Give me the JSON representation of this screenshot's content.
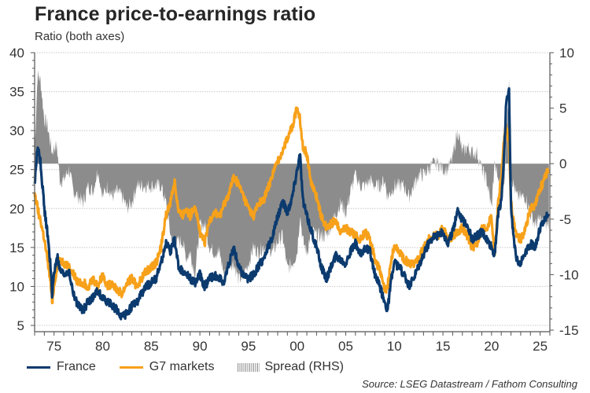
{
  "title": "France price-to-earnings ratio",
  "subtitle": "Ratio (both axes)",
  "source": "Source: LSEG Datastream / Fathom Consulting",
  "colors": {
    "france": "#0b3a6e",
    "g7": "#f7a11a",
    "spread": "#8c8c8c",
    "grid": "#c8c8c8",
    "axis": "#555555"
  },
  "legend": [
    {
      "label": "France",
      "key": "france"
    },
    {
      "label": "G7 markets",
      "key": "g7"
    },
    {
      "label": "Spread (RHS)",
      "key": "spread"
    }
  ],
  "chart_data": {
    "type": "line",
    "title": "France price-to-earnings ratio",
    "subtitle": "Ratio (both axes)",
    "xlabel": "",
    "ylabel": "Ratio",
    "y2label": "Spread (RHS)",
    "xlim": [
      1973,
      2026
    ],
    "ylim": [
      5,
      40
    ],
    "y2lim": [
      -15,
      10
    ],
    "grid": true,
    "legend_position": "bottom",
    "x_ticks": [
      1975,
      1980,
      1985,
      1990,
      1995,
      2000,
      2005,
      2010,
      2015,
      2020,
      2025
    ],
    "x_tick_labels": [
      "75",
      "80",
      "85",
      "90",
      "95",
      "00",
      "05",
      "10",
      "15",
      "20",
      "25"
    ],
    "y_ticks": [
      5,
      10,
      15,
      20,
      25,
      30,
      35,
      40
    ],
    "y2_ticks": [
      -15,
      -10,
      -5,
      0,
      5,
      10
    ],
    "x": [
      1973.0,
      1973.3,
      1973.6,
      1974.0,
      1974.3,
      1974.6,
      1974.8,
      1975.0,
      1975.3,
      1975.6,
      1976.0,
      1976.5,
      1977.0,
      1977.5,
      1978.0,
      1978.5,
      1979.0,
      1979.5,
      1980.0,
      1980.5,
      1981.0,
      1981.5,
      1982.0,
      1982.5,
      1983.0,
      1983.5,
      1984.0,
      1984.5,
      1985.0,
      1985.5,
      1986.0,
      1986.5,
      1987.0,
      1987.4,
      1987.8,
      1988.2,
      1988.6,
      1989.0,
      1989.5,
      1990.0,
      1990.5,
      1991.0,
      1991.5,
      1992.0,
      1992.5,
      1993.0,
      1993.5,
      1994.0,
      1994.5,
      1995.0,
      1995.5,
      1996.0,
      1996.5,
      1997.0,
      1997.5,
      1998.0,
      1998.5,
      1999.0,
      1999.5,
      2000.0,
      2000.3,
      2000.6,
      2001.0,
      2001.5,
      2002.0,
      2002.5,
      2003.0,
      2003.5,
      2004.0,
      2004.5,
      2005.0,
      2005.5,
      2006.0,
      2006.5,
      2007.0,
      2007.5,
      2008.0,
      2008.5,
      2009.0,
      2009.3,
      2009.7,
      2010.0,
      2010.5,
      2011.0,
      2011.5,
      2012.0,
      2012.5,
      2013.0,
      2013.5,
      2014.0,
      2014.5,
      2015.0,
      2015.5,
      2016.0,
      2016.5,
      2017.0,
      2017.5,
      2018.0,
      2018.5,
      2019.0,
      2019.5,
      2020.0,
      2020.3,
      2020.7,
      2021.0,
      2021.3,
      2021.5,
      2021.8,
      2022.0,
      2022.3,
      2022.6,
      2023.0,
      2023.5,
      2024.0,
      2024.5,
      2025.0,
      2025.5,
      2025.9
    ],
    "series": [
      {
        "name": "France",
        "axis": "left",
        "values": [
          23.0,
          28.0,
          26.0,
          20.0,
          17.0,
          13.0,
          9.0,
          11.5,
          14.0,
          12.0,
          11.5,
          12.0,
          9.0,
          7.5,
          7.0,
          8.0,
          8.5,
          9.5,
          8.5,
          8.0,
          7.5,
          7.0,
          6.0,
          6.5,
          7.5,
          8.0,
          9.0,
          10.0,
          10.5,
          11.0,
          13.0,
          15.5,
          14.5,
          16.0,
          12.5,
          12.0,
          11.5,
          11.0,
          10.5,
          11.5,
          10.0,
          11.0,
          11.5,
          11.0,
          10.5,
          13.0,
          15.0,
          12.5,
          11.5,
          11.0,
          11.5,
          12.5,
          13.5,
          15.0,
          16.5,
          19.0,
          21.0,
          19.5,
          21.5,
          25.0,
          27.0,
          21.0,
          19.0,
          17.0,
          15.0,
          12.5,
          11.0,
          12.5,
          14.0,
          13.5,
          13.0,
          14.5,
          15.5,
          14.0,
          15.0,
          14.5,
          11.5,
          10.0,
          8.0,
          7.0,
          11.0,
          13.0,
          12.5,
          11.5,
          10.0,
          11.0,
          12.5,
          14.0,
          15.5,
          16.5,
          16.5,
          17.0,
          15.5,
          17.0,
          20.0,
          18.5,
          18.0,
          16.0,
          16.5,
          17.0,
          16.0,
          15.0,
          14.0,
          19.5,
          21.0,
          27.0,
          33.5,
          35.0,
          20.0,
          16.0,
          13.5,
          13.0,
          14.5,
          15.5,
          15.0,
          17.5,
          18.5,
          19.5
        ]
      },
      {
        "name": "G7 markets",
        "axis": "left",
        "values": [
          22.0,
          20.0,
          18.5,
          16.0,
          13.5,
          11.0,
          8.0,
          10.0,
          12.5,
          13.5,
          13.0,
          12.5,
          11.5,
          10.5,
          10.5,
          10.0,
          11.0,
          10.0,
          11.5,
          10.0,
          10.5,
          9.5,
          9.0,
          10.5,
          11.0,
          10.0,
          11.0,
          12.0,
          12.5,
          13.0,
          15.0,
          19.0,
          21.0,
          23.5,
          19.5,
          19.0,
          20.0,
          19.0,
          20.5,
          17.0,
          15.5,
          18.5,
          19.5,
          19.0,
          20.5,
          22.0,
          24.0,
          23.0,
          21.5,
          20.0,
          19.0,
          20.5,
          21.0,
          22.5,
          24.5,
          26.0,
          27.5,
          29.0,
          30.5,
          33.0,
          31.5,
          28.0,
          27.0,
          23.0,
          21.5,
          19.0,
          17.5,
          18.0,
          18.5,
          17.0,
          17.5,
          17.0,
          16.5,
          16.0,
          17.0,
          16.0,
          13.5,
          12.0,
          9.5,
          10.0,
          13.5,
          15.0,
          14.5,
          13.5,
          13.0,
          13.0,
          13.5,
          15.0,
          16.0,
          16.5,
          16.5,
          17.5,
          16.0,
          16.5,
          17.0,
          17.5,
          16.5,
          15.0,
          15.5,
          17.5,
          17.5,
          19.0,
          14.0,
          21.0,
          24.0,
          29.0,
          30.5,
          28.0,
          21.0,
          18.0,
          16.5,
          16.0,
          17.5,
          20.0,
          20.5,
          22.5,
          24.0,
          25.0
        ]
      },
      {
        "name": "Spread (RHS)",
        "axis": "right",
        "values": [
          1.0,
          8.0,
          7.5,
          4.0,
          3.5,
          2.0,
          1.0,
          1.5,
          1.5,
          -1.5,
          -1.5,
          -0.5,
          -2.5,
          -3.0,
          -3.5,
          -2.0,
          -2.5,
          -0.5,
          -3.0,
          -2.0,
          -3.0,
          -2.5,
          -3.0,
          -4.0,
          -3.5,
          -2.0,
          -2.0,
          -2.0,
          -2.0,
          -2.0,
          -2.0,
          -3.5,
          -6.5,
          -7.5,
          -7.0,
          -7.0,
          -8.5,
          -8.0,
          -10.0,
          -5.5,
          -5.5,
          -7.5,
          -8.0,
          -8.0,
          -10.0,
          -9.0,
          -9.0,
          -10.5,
          -10.0,
          -9.0,
          -7.5,
          -8.0,
          -7.5,
          -7.5,
          -8.0,
          -7.0,
          -6.5,
          -9.5,
          -9.0,
          -8.0,
          -4.5,
          -7.0,
          -8.0,
          -6.0,
          -6.5,
          -6.5,
          -6.5,
          -5.5,
          -4.5,
          -3.5,
          -4.5,
          -2.5,
          -1.0,
          -2.0,
          -2.0,
          -1.5,
          -2.0,
          -2.0,
          -1.5,
          -3.0,
          -2.5,
          -2.0,
          -2.0,
          -2.0,
          -3.0,
          -2.0,
          -1.0,
          -1.0,
          -0.5,
          0.0,
          0.0,
          -0.5,
          -0.5,
          0.5,
          3.0,
          1.0,
          1.5,
          1.0,
          1.0,
          -0.5,
          -1.5,
          -4.0,
          0.0,
          -1.5,
          -3.0,
          -2.0,
          3.0,
          7.0,
          -1.0,
          -2.0,
          -3.0,
          -3.0,
          -3.0,
          -4.5,
          -5.5,
          -5.0,
          -5.5,
          -5.5
        ]
      }
    ]
  }
}
